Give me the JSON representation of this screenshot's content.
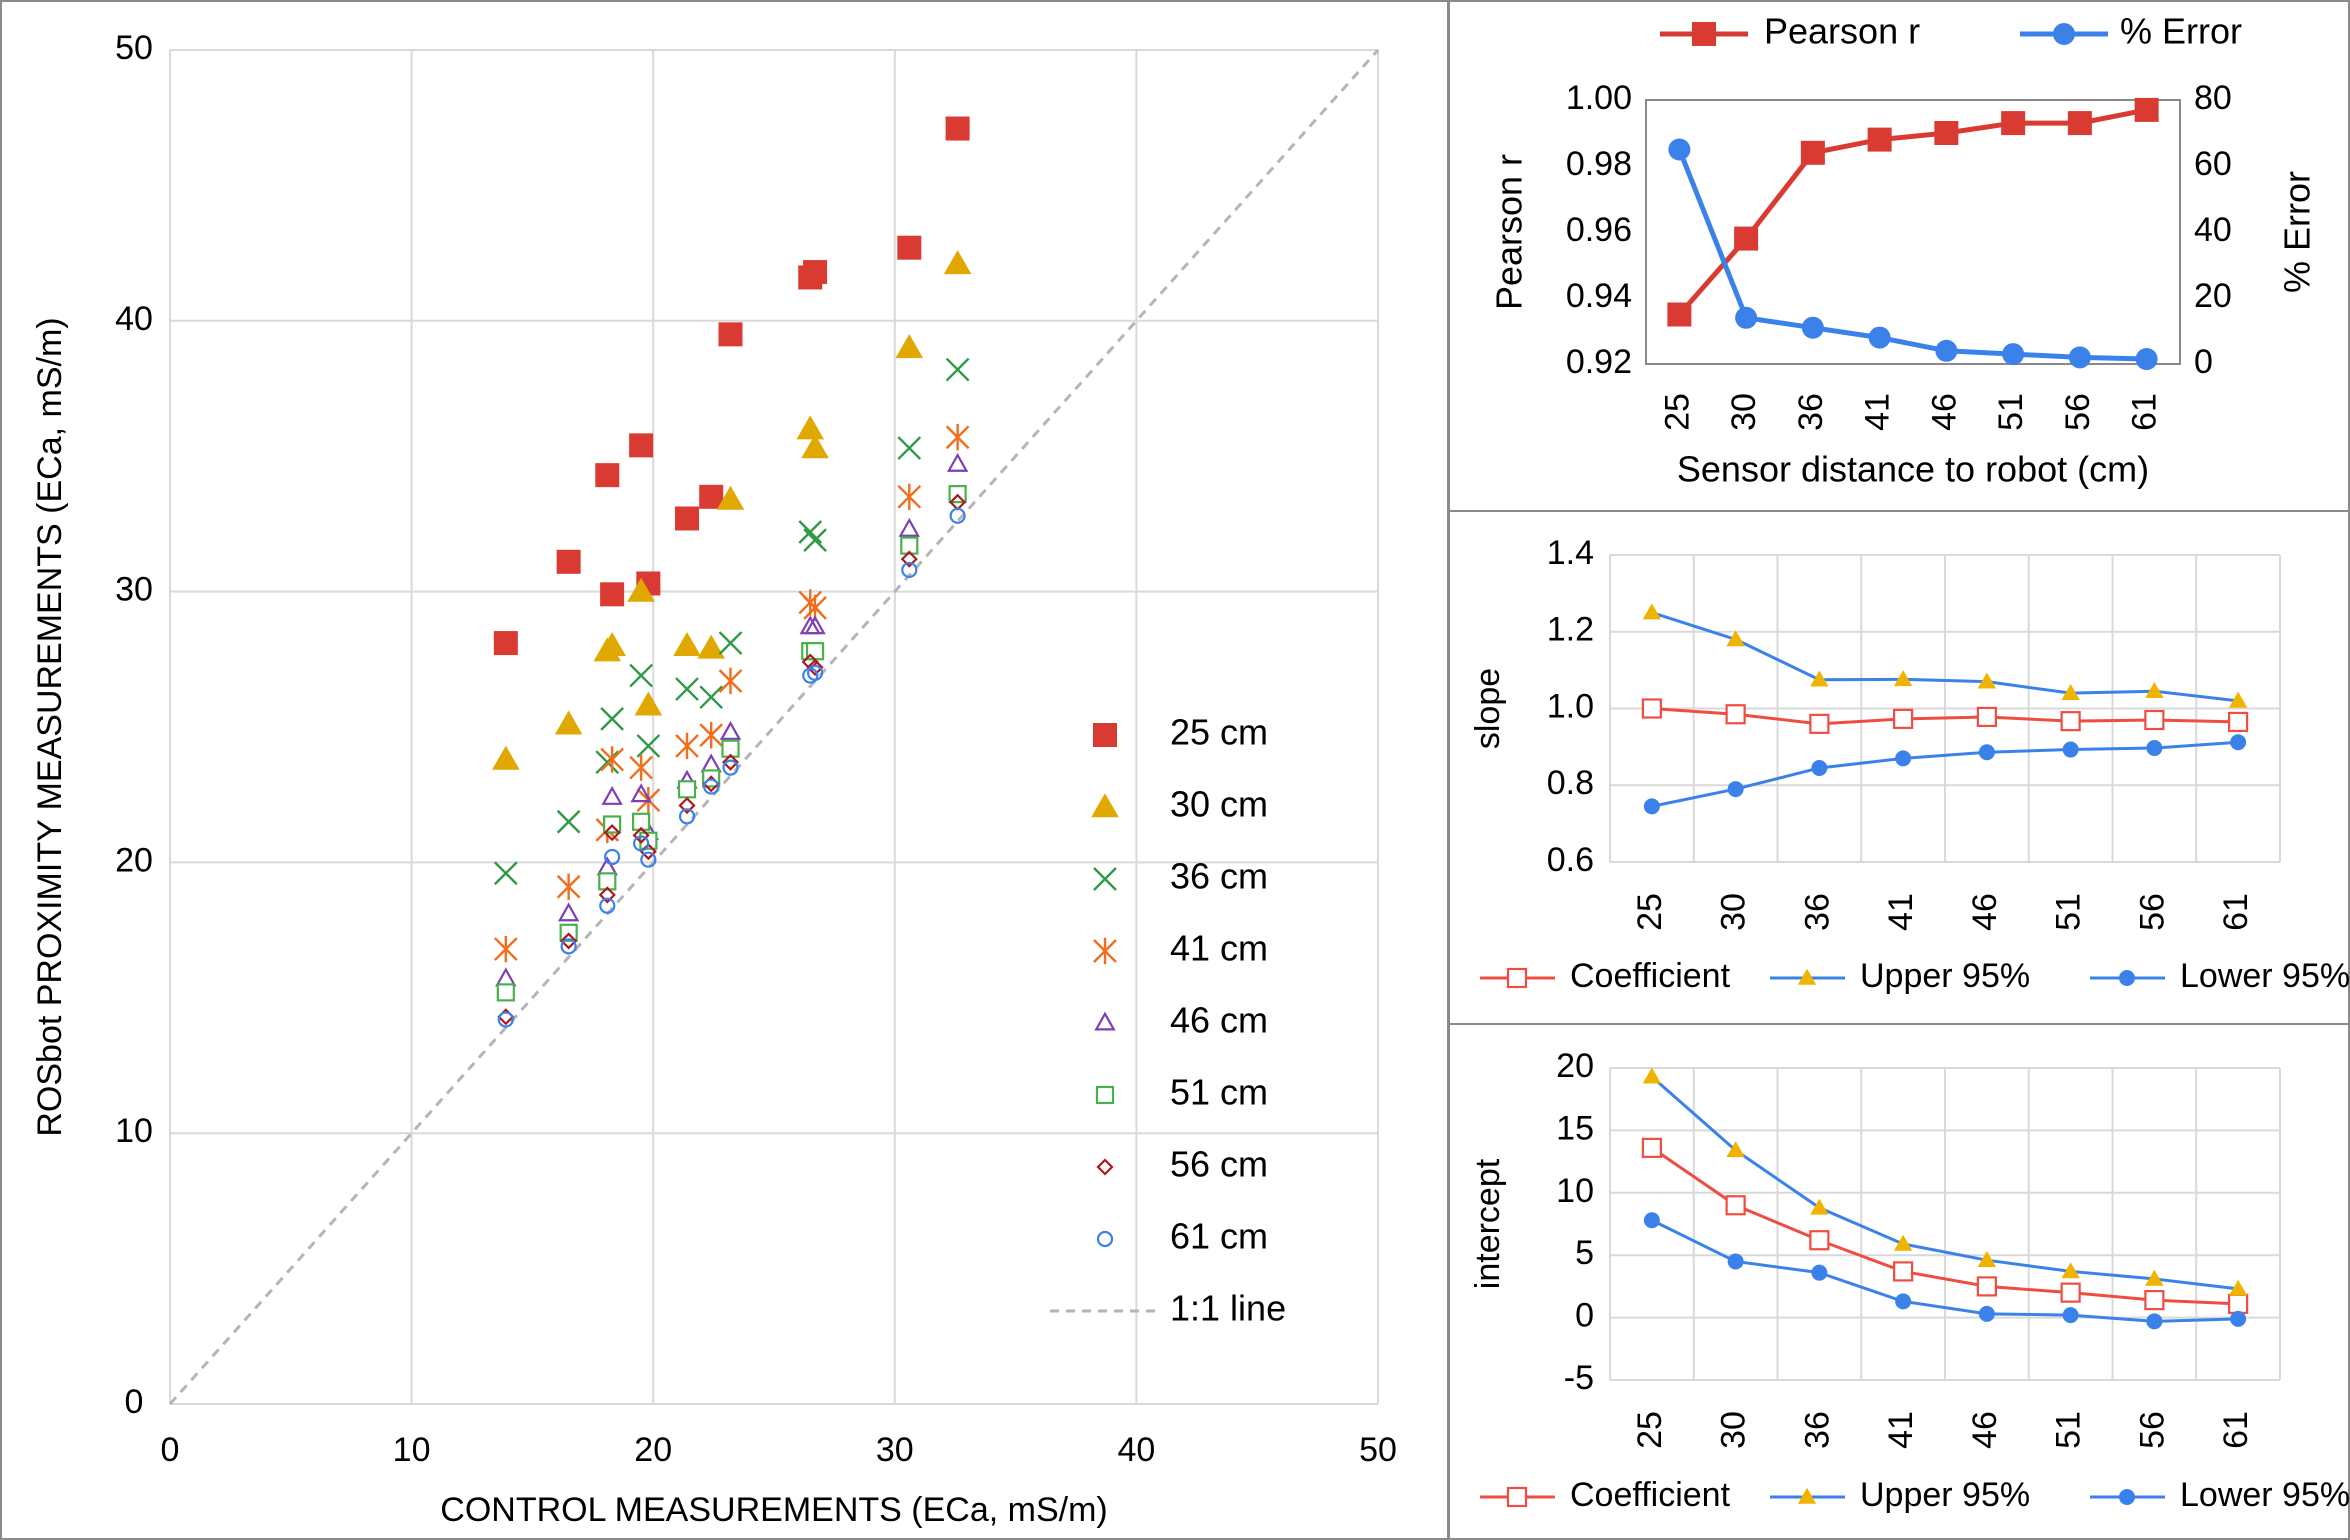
{
  "colors": {
    "red": "#d93b32",
    "gold": "#e0a800",
    "green": "#2e9a45",
    "orange": "#f26d1c",
    "purple": "#7e3fb4",
    "lightgreen": "#48b24a",
    "darkred": "#b0161e",
    "blue": "#3a82ea",
    "gray": "#b5b5b5",
    "line_red": "#ef4d42",
    "line_blue": "#3a82ea",
    "line_gold": "#f0b400"
  },
  "chart_data": [
    {
      "id": "scatter",
      "type": "scatter",
      "xlabel": "CONTROL MEASUREMENTS (ECa, mS/m)",
      "ylabel": "ROSbot PROXIMITY MEASUREMENTS (ECa, mS/m)",
      "xlim": [
        0,
        50
      ],
      "ylim": [
        0,
        50
      ],
      "xticks": [
        "0",
        "10",
        "20",
        "30",
        "40",
        "50"
      ],
      "yticks": [
        "0",
        "10",
        "20",
        "30",
        "40",
        "50"
      ],
      "grid": true,
      "legend_position": "bottom-right",
      "x": [
        13.9,
        16.5,
        18.1,
        18.3,
        19.5,
        19.8,
        21.4,
        22.4,
        23.2,
        26.5,
        26.7,
        30.6,
        32.6
      ],
      "series": [
        {
          "name": "25 cm",
          "marker": "square-filled",
          "color_key": "red",
          "values": [
            28.1,
            31.1,
            34.3,
            29.9,
            35.4,
            30.3,
            32.7,
            33.5,
            39.5,
            41.6,
            41.8,
            42.7,
            47.1
          ]
        },
        {
          "name": "30 cm",
          "marker": "triangle-filled",
          "color_key": "gold",
          "values": [
            23.8,
            25.1,
            27.8,
            28.0,
            30.0,
            25.8,
            28.0,
            27.9,
            33.4,
            36.0,
            35.3,
            39.0,
            42.1
          ]
        },
        {
          "name": "36 cm",
          "marker": "x",
          "color_key": "green",
          "values": [
            19.6,
            21.5,
            23.7,
            25.3,
            26.9,
            24.3,
            26.4,
            26.1,
            28.1,
            32.2,
            31.9,
            35.3,
            38.2
          ]
        },
        {
          "name": "41 cm",
          "marker": "star",
          "color_key": "orange",
          "values": [
            16.8,
            19.1,
            21.2,
            23.8,
            23.5,
            22.3,
            24.3,
            24.7,
            26.7,
            29.6,
            29.4,
            33.5,
            35.7
          ]
        },
        {
          "name": "46 cm",
          "marker": "triangle-open",
          "color_key": "purple",
          "values": [
            15.7,
            18.1,
            19.8,
            22.4,
            22.5,
            21.1,
            23.0,
            23.6,
            24.8,
            28.7,
            28.7,
            32.3,
            34.7
          ]
        },
        {
          "name": "51 cm",
          "marker": "square-open",
          "color_key": "lightgreen",
          "values": [
            15.2,
            17.4,
            19.3,
            21.4,
            21.5,
            20.8,
            22.7,
            23.1,
            24.2,
            27.8,
            27.8,
            31.7,
            33.6
          ]
        },
        {
          "name": "56 cm",
          "marker": "diamond-open",
          "color_key": "darkred",
          "values": [
            14.3,
            17.1,
            18.8,
            21.1,
            21.0,
            20.4,
            22.1,
            22.9,
            23.7,
            27.4,
            27.2,
            31.2,
            33.3
          ]
        },
        {
          "name": "61 cm",
          "marker": "circle-open",
          "color_key": "blue",
          "values": [
            14.2,
            16.9,
            18.4,
            20.2,
            20.7,
            20.1,
            21.7,
            22.8,
            23.5,
            26.9,
            27.0,
            30.8,
            32.8
          ]
        }
      ],
      "reference_line": {
        "name": "1:1 line",
        "from": [
          0,
          0
        ],
        "to": [
          50,
          50
        ]
      }
    },
    {
      "id": "pearson",
      "type": "line",
      "xlabel": "Sensor distance to robot (cm)",
      "ylabel": "Pearson r",
      "y2label": "% Error",
      "categories": [
        "25",
        "30",
        "36",
        "41",
        "46",
        "51",
        "56",
        "61"
      ],
      "ylim": [
        0.92,
        1.0
      ],
      "yticks": [
        "0.92",
        "0.94",
        "0.96",
        "0.98",
        "1.00"
      ],
      "y2lim": [
        0,
        80
      ],
      "y2ticks": [
        "0",
        "20",
        "40",
        "60",
        "80"
      ],
      "legend_position": "top",
      "series": [
        {
          "name": "Pearson r",
          "axis": "left",
          "marker": "square-filled",
          "color_key": "red",
          "values": [
            0.935,
            0.958,
            0.984,
            0.988,
            0.99,
            0.993,
            0.993,
            0.997
          ]
        },
        {
          "name": "% Error",
          "axis": "right",
          "marker": "circle-filled",
          "color_key": "blue",
          "values": [
            65,
            14,
            11,
            8,
            4,
            3,
            2,
            1.5
          ]
        }
      ]
    },
    {
      "id": "slope",
      "type": "line",
      "xlabel": "",
      "ylabel": "slope",
      "categories": [
        "25",
        "30",
        "36",
        "41",
        "46",
        "51",
        "56",
        "61"
      ],
      "ylim": [
        0.6,
        1.4
      ],
      "yticks": [
        "0.6",
        "0.8",
        "1.0",
        "1.2",
        "1.4"
      ],
      "legend_position": "bottom",
      "series": [
        {
          "name": "Coefficient",
          "marker": "square-open",
          "line_key": "line_red",
          "marker_key": "line_red",
          "values": [
            1.0,
            0.985,
            0.96,
            0.973,
            0.978,
            0.967,
            0.97,
            0.965
          ]
        },
        {
          "name": "Upper 95%",
          "marker": "triangle-filled",
          "line_key": "line_blue",
          "marker_key": "line_gold",
          "values": [
            1.25,
            1.18,
            1.075,
            1.076,
            1.07,
            1.04,
            1.045,
            1.02
          ]
        },
        {
          "name": "Lower 95%",
          "marker": "circle-filled",
          "line_key": "line_blue",
          "marker_key": "line_blue",
          "values": [
            0.745,
            0.79,
            0.845,
            0.87,
            0.886,
            0.893,
            0.897,
            0.912
          ]
        }
      ]
    },
    {
      "id": "intercept",
      "type": "line",
      "xlabel": "",
      "ylabel": "intercept",
      "categories": [
        "25",
        "30",
        "36",
        "41",
        "46",
        "51",
        "56",
        "61"
      ],
      "ylim": [
        -5,
        20
      ],
      "yticks": [
        "-5",
        "0",
        "5",
        "10",
        "15",
        "20"
      ],
      "legend_position": "bottom",
      "series": [
        {
          "name": "Coefficient",
          "marker": "square-open",
          "line_key": "line_red",
          "marker_key": "line_red",
          "values": [
            13.6,
            9.0,
            6.2,
            3.7,
            2.5,
            2.0,
            1.4,
            1.1
          ]
        },
        {
          "name": "Upper 95%",
          "marker": "triangle-filled",
          "line_key": "line_blue",
          "marker_key": "line_gold",
          "values": [
            19.3,
            13.4,
            8.8,
            5.9,
            4.6,
            3.7,
            3.1,
            2.3
          ]
        },
        {
          "name": "Lower 95%",
          "marker": "circle-filled",
          "line_key": "line_blue",
          "marker_key": "line_blue",
          "values": [
            7.8,
            4.5,
            3.6,
            1.3,
            0.3,
            0.2,
            -0.3,
            -0.1
          ]
        }
      ]
    }
  ]
}
